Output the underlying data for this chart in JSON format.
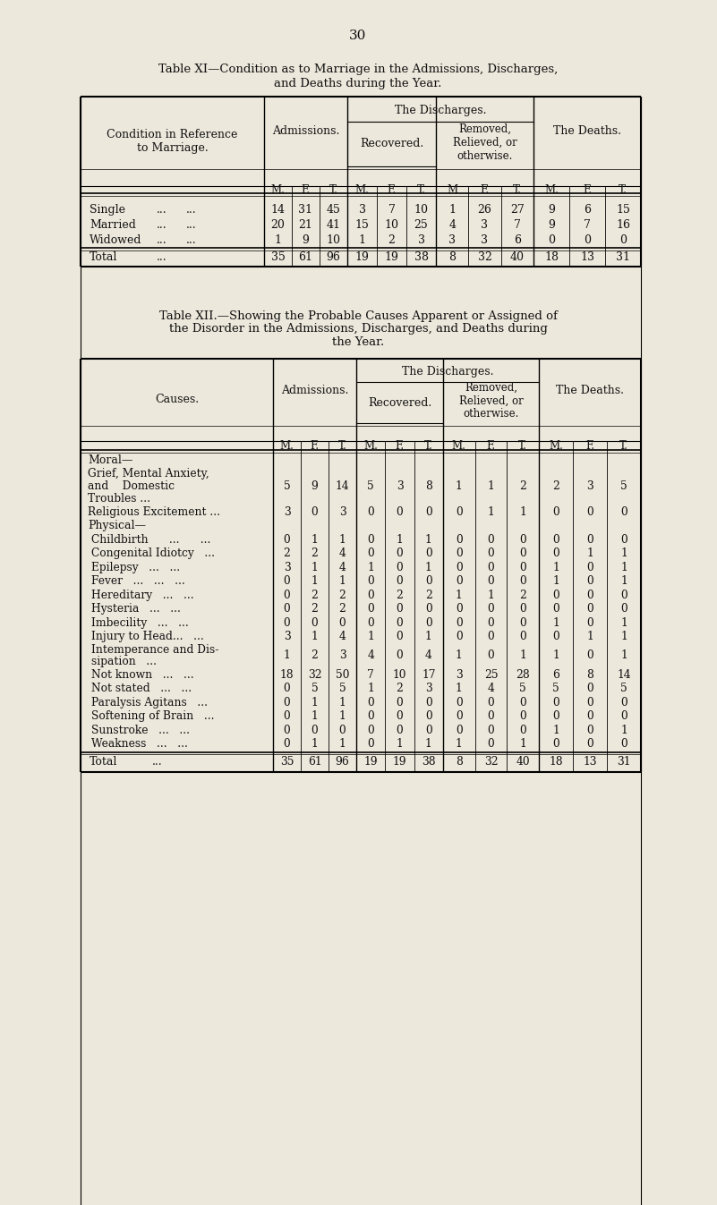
{
  "bg_color": "#ede8dc",
  "page_number": "30",
  "t1_title1": "Table XI—Condition as to Marriage in the Admissions, Discharges,",
  "t1_title2": "and Deaths during the Year.",
  "t1_rows": [
    [
      "Single",
      "...",
      "...",
      "14",
      "31",
      "45",
      "3",
      "7",
      "10",
      "1",
      "26",
      "27",
      "9",
      "6",
      "15"
    ],
    [
      "Married",
      "...",
      "...",
      "20",
      "21",
      "41",
      "15",
      "10",
      "25",
      "4",
      "3",
      "7",
      "9",
      "7",
      "16"
    ],
    [
      "Widowed",
      "...",
      "...",
      "1",
      "9",
      "10",
      "1",
      "2",
      "3",
      "3",
      "3",
      "6",
      "0",
      "0",
      "0"
    ],
    [
      "Total",
      "...",
      "",
      "35",
      "61",
      "96",
      "19",
      "19",
      "38",
      "8",
      "32",
      "40",
      "18",
      "13",
      "31"
    ]
  ],
  "t2_title1": "Table XII.—Showing the Probable Causes Apparent or Assigned of",
  "t2_title2": "the Disorder in the Admissions, Discharges, and Deaths during",
  "t2_title3": "the Year.",
  "t2_rows": [
    {
      "label": "Moral—",
      "indent": 0,
      "lines": 1,
      "header": true,
      "nums": null
    },
    {
      "label": "Grief, Mental Anxiety,",
      "indent": 1,
      "lines": 3,
      "header": false,
      "nums": [
        "5",
        "9",
        "14",
        "5",
        "3",
        "8",
        "1",
        "1",
        "2",
        "2",
        "3",
        "5"
      ],
      "extra_lines": [
        "and    Domestic {",
        "Troubles ..."
      ]
    },
    {
      "label": "Religious Excitement ...",
      "indent": 1,
      "lines": 1,
      "header": false,
      "nums": [
        "3",
        "0",
        "3",
        "0",
        "0",
        "0",
        "0",
        "1",
        "1",
        "0",
        "0",
        "0"
      ]
    },
    {
      "label": "Physical—",
      "indent": 0,
      "lines": 1,
      "header": true,
      "nums": null
    },
    {
      "label": "Childbirth      ...      ...",
      "indent": 2,
      "lines": 1,
      "header": false,
      "nums": [
        "0",
        "1",
        "1",
        "0",
        "1",
        "1",
        "0",
        "0",
        "0",
        "0",
        "0",
        "0"
      ]
    },
    {
      "label": "Congenital Idiotcy   ...",
      "indent": 2,
      "lines": 1,
      "header": false,
      "nums": [
        "2",
        "2",
        "4",
        "0",
        "0",
        "0",
        "0",
        "0",
        "0",
        "0",
        "1",
        "1"
      ]
    },
    {
      "label": "Epilepsy   ...   ...",
      "indent": 2,
      "lines": 1,
      "header": false,
      "nums": [
        "3",
        "1",
        "4",
        "1",
        "0",
        "1",
        "0",
        "0",
        "0",
        "1",
        "0",
        "1"
      ]
    },
    {
      "label": "Fever   ...   ...   ...",
      "indent": 2,
      "lines": 1,
      "header": false,
      "nums": [
        "0",
        "1",
        "1",
        "0",
        "0",
        "0",
        "0",
        "0",
        "0",
        "1",
        "0",
        "1"
      ]
    },
    {
      "label": "Hereditary   ...   ...",
      "indent": 2,
      "lines": 1,
      "header": false,
      "nums": [
        "0",
        "2",
        "2",
        "0",
        "2",
        "2",
        "1",
        "1",
        "2",
        "0",
        "0",
        "0"
      ]
    },
    {
      "label": "Hysteria   ...   ...",
      "indent": 2,
      "lines": 1,
      "header": false,
      "nums": [
        "0",
        "2",
        "2",
        "0",
        "0",
        "0",
        "0",
        "0",
        "0",
        "0",
        "0",
        "0"
      ]
    },
    {
      "label": "Imbecility   ...   ...",
      "indent": 2,
      "lines": 1,
      "header": false,
      "nums": [
        "0",
        "0",
        "0",
        "0",
        "0",
        "0",
        "0",
        "0",
        "0",
        "1",
        "0",
        "1"
      ]
    },
    {
      "label": "Injury to Head...   ...",
      "indent": 2,
      "lines": 1,
      "header": false,
      "nums": [
        "3",
        "1",
        "4",
        "1",
        "0",
        "1",
        "0",
        "0",
        "0",
        "0",
        "1",
        "1"
      ]
    },
    {
      "label": "Intemperance and Dis- {",
      "indent": 2,
      "lines": 2,
      "header": false,
      "nums": [
        "1",
        "2",
        "3",
        "4",
        "0",
        "4",
        "1",
        "0",
        "1",
        "1",
        "0",
        "1"
      ],
      "extra_lines": [
        "sipation   ..."
      ]
    },
    {
      "label": "Not known   ...   ...",
      "indent": 2,
      "lines": 1,
      "header": false,
      "nums": [
        "18",
        "32",
        "50",
        "7",
        "10",
        "17",
        "3",
        "25",
        "28",
        "6",
        "8",
        "14"
      ]
    },
    {
      "label": "Not stated   ...   ...",
      "indent": 2,
      "lines": 1,
      "header": false,
      "nums": [
        "0",
        "5",
        "5",
        "1",
        "2",
        "3",
        "1",
        "4",
        "5",
        "5",
        "0",
        "5"
      ]
    },
    {
      "label": "Paralysis Agitans   ...",
      "indent": 2,
      "lines": 1,
      "header": false,
      "nums": [
        "0",
        "1",
        "1",
        "0",
        "0",
        "0",
        "0",
        "0",
        "0",
        "0",
        "0",
        "0"
      ]
    },
    {
      "label": "Softening of Brain   ...",
      "indent": 2,
      "lines": 1,
      "header": false,
      "nums": [
        "0",
        "1",
        "1",
        "0",
        "0",
        "0",
        "0",
        "0",
        "0",
        "0",
        "0",
        "0"
      ]
    },
    {
      "label": "Sunstroke   ...   ...",
      "indent": 2,
      "lines": 1,
      "header": false,
      "nums": [
        "0",
        "0",
        "0",
        "0",
        "0",
        "0",
        "0",
        "0",
        "0",
        "1",
        "0",
        "1"
      ]
    },
    {
      "label": "Weakness   ...   ...",
      "indent": 2,
      "lines": 1,
      "header": false,
      "nums": [
        "0",
        "1",
        "1",
        "0",
        "1",
        "1",
        "1",
        "0",
        "1",
        "0",
        "0",
        "0"
      ]
    },
    {
      "label": "Total",
      "indent": 0,
      "lines": 1,
      "header": false,
      "total": true,
      "nums": [
        "35",
        "61",
        "96",
        "19",
        "19",
        "38",
        "8",
        "32",
        "40",
        "18",
        "13",
        "31"
      ]
    }
  ]
}
